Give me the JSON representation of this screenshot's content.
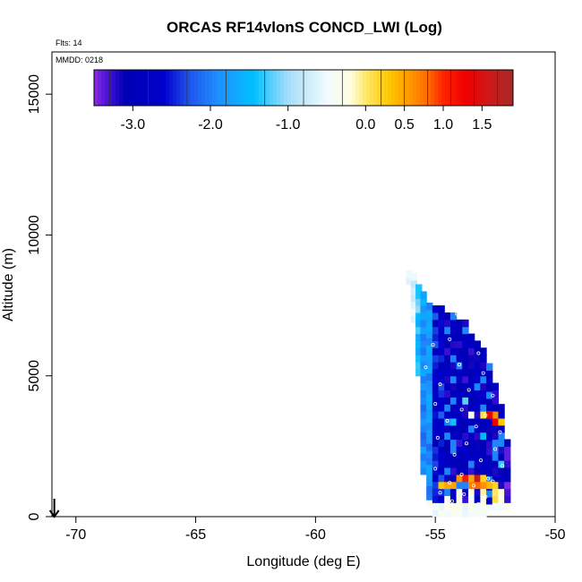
{
  "chart_data": {
    "type": "heatmap",
    "title": "ORCAS RF14vlonS CONCD_LWI (Log)",
    "flights_label": "Flts: 14",
    "date_label": "MMDD: 0218",
    "xlabel": "Longitude (deg E)",
    "ylabel": "Altitude (m)",
    "xlim": [
      -71,
      -50
    ],
    "ylim": [
      0,
      16500
    ],
    "x_ticks": [
      -70,
      -65,
      -60,
      -55,
      -50
    ],
    "x_tick_labels": [
      "-70",
      "-65",
      "-60",
      "-55",
      "-50"
    ],
    "y_ticks": [
      0,
      5000,
      10000,
      15000
    ],
    "y_tick_labels": [
      "0",
      "5000",
      "10000",
      "15000"
    ],
    "grid": false,
    "colorbar": {
      "min": -3.5,
      "max": 1.9,
      "tick_values": [
        -3.0,
        -2.0,
        -1.0,
        0.0,
        0.5,
        1.0,
        1.5
      ],
      "tick_labels": [
        "-3.0",
        "-2.0",
        "-1.0",
        "0.0",
        "0.5",
        "1.0",
        "1.5"
      ],
      "color_stops": [
        {
          "v": -3.5,
          "c": "#8a2be2"
        },
        {
          "v": -3.3,
          "c": "#3d10d6"
        },
        {
          "v": -3.1,
          "c": "#0000b4"
        },
        {
          "v": -2.6,
          "c": "#0000cd"
        },
        {
          "v": -2.3,
          "c": "#1e4fe8"
        },
        {
          "v": -1.9,
          "c": "#1e90ff"
        },
        {
          "v": -1.45,
          "c": "#00bfff"
        },
        {
          "v": -1.0,
          "c": "#a6dcf7"
        },
        {
          "v": -0.5,
          "c": "#f2fbff"
        },
        {
          "v": -0.2,
          "c": "#ffffe0"
        },
        {
          "v": 0.0,
          "c": "#ffe96b"
        },
        {
          "v": 0.3,
          "c": "#ffc800"
        },
        {
          "v": 0.5,
          "c": "#ffa500"
        },
        {
          "v": 0.8,
          "c": "#ff6a00"
        },
        {
          "v": 1.0,
          "c": "#ff2400"
        },
        {
          "v": 1.3,
          "c": "#ee0000"
        },
        {
          "v": 1.6,
          "c": "#cc1a1a"
        },
        {
          "v": 1.9,
          "c": "#a52a2a"
        }
      ]
    },
    "cell_size": {
      "lon": 0.25,
      "alt": 250
    },
    "columns": [
      {
        "lon": -56.1,
        "base": 8250,
        "top": 8600,
        "profile": "edge"
      },
      {
        "lon": -55.9,
        "base": 6900,
        "top": 8500,
        "profile": "edge"
      },
      {
        "lon": -55.7,
        "base": 5000,
        "top": 8250,
        "profile": "light"
      },
      {
        "lon": -55.5,
        "base": 1500,
        "top": 8000,
        "profile": "sky"
      },
      {
        "lon": -55.25,
        "base": 350,
        "top": 7600,
        "profile": "sky"
      },
      {
        "lon": -55.0,
        "base": 0,
        "top": 7400,
        "profile": "mid"
      },
      {
        "lon": -54.75,
        "base": 0,
        "top": 7300,
        "profile": "mid"
      },
      {
        "lon": -54.5,
        "base": 0,
        "top": 7200,
        "profile": "deep"
      },
      {
        "lon": -54.25,
        "base": 0,
        "top": 7100,
        "profile": "deep"
      },
      {
        "lon": -54.0,
        "base": 0,
        "top": 6900,
        "profile": "deep"
      },
      {
        "lon": -53.75,
        "base": 0,
        "top": 6800,
        "profile": "deep"
      },
      {
        "lon": -53.5,
        "base": 0,
        "top": 6500,
        "profile": "deep"
      },
      {
        "lon": -53.25,
        "base": 0,
        "top": 6150,
        "profile": "deep"
      },
      {
        "lon": -53.0,
        "base": 0,
        "top": 5800,
        "profile": "deep"
      },
      {
        "lon": -52.75,
        "base": 200,
        "top": 5300,
        "profile": "deep"
      },
      {
        "lon": -52.5,
        "base": 250,
        "top": 4600,
        "profile": "deep"
      },
      {
        "lon": -52.25,
        "base": 250,
        "top": 3900,
        "profile": "deep"
      },
      {
        "lon": -52.0,
        "base": 250,
        "top": 2700,
        "profile": "edge_purple"
      }
    ],
    "hot_spots": [
      {
        "lon": -54.0,
        "alt": 1150,
        "value": 0.6
      },
      {
        "lon": -53.75,
        "alt": 1150,
        "value": 0.4
      },
      {
        "lon": -53.5,
        "alt": 1150,
        "value": 0.5
      },
      {
        "lon": -53.25,
        "alt": 1150,
        "value": 0.3
      },
      {
        "lon": -53.0,
        "alt": 1150,
        "value": 0.2
      },
      {
        "lon": -53.75,
        "alt": 1150,
        "value": 1.1
      },
      {
        "lon": -53.5,
        "alt": 900,
        "value": 0.7
      },
      {
        "lon": -53.25,
        "alt": 900,
        "value": 0.8
      },
      {
        "lon": -53.0,
        "alt": 900,
        "value": 0.6
      },
      {
        "lon": -52.75,
        "alt": 900,
        "value": 0.4
      },
      {
        "lon": -52.5,
        "alt": 900,
        "value": 0.2
      },
      {
        "lon": -54.5,
        "alt": 900,
        "value": 0.5
      },
      {
        "lon": -54.25,
        "alt": 900,
        "value": 0.5
      },
      {
        "lon": -54.75,
        "alt": 900,
        "value": 0.3
      },
      {
        "lon": -52.75,
        "alt": 3400,
        "value": 1.4
      },
      {
        "lon": -53.0,
        "alt": 3400,
        "value": 0.1
      },
      {
        "lon": -52.5,
        "alt": 3400,
        "value": 0.6
      },
      {
        "lon": -52.5,
        "alt": 3150,
        "value": 1.3
      },
      {
        "lon": -53.5,
        "alt": 3400,
        "value": -0.4
      },
      {
        "lon": -52.25,
        "alt": 3150,
        "value": 0.3
      },
      {
        "lon": -53.25,
        "alt": 1150,
        "value": 1.6
      },
      {
        "lon": -54.0,
        "alt": 650,
        "value": -0.3
      },
      {
        "lon": -53.5,
        "alt": 650,
        "value": -0.2
      },
      {
        "lon": -53.0,
        "alt": 650,
        "value": -0.1
      },
      {
        "lon": -52.5,
        "alt": 650,
        "value": 0.0
      },
      {
        "lon": -52.25,
        "alt": 650,
        "value": -0.2
      },
      {
        "lon": -54.5,
        "alt": 400,
        "value": -0.4
      },
      {
        "lon": -54.0,
        "alt": 400,
        "value": -0.3
      },
      {
        "lon": -53.5,
        "alt": 400,
        "value": -0.5
      },
      {
        "lon": -53.0,
        "alt": 400,
        "value": -0.2
      },
      {
        "lon": -52.5,
        "alt": 400,
        "value": 0.1
      },
      {
        "lon": -52.25,
        "alt": 400,
        "value": -0.3
      },
      {
        "lon": -55.0,
        "alt": 150,
        "value": -0.4
      },
      {
        "lon": -54.5,
        "alt": 150,
        "value": -0.3
      },
      {
        "lon": -54.0,
        "alt": 150,
        "value": -0.3
      },
      {
        "lon": -53.5,
        "alt": 150,
        "value": -0.2
      },
      {
        "lon": -53.0,
        "alt": 150,
        "value": -0.3
      },
      {
        "lon": -52.5,
        "alt": 150,
        "value": -0.5
      },
      {
        "lon": -52.25,
        "alt": 1650,
        "value": -1.3
      },
      {
        "lon": -53.0,
        "alt": 2650,
        "value": -1.5
      },
      {
        "lon": -54.25,
        "alt": 3150,
        "value": -1.4
      },
      {
        "lon": -53.75,
        "alt": 3900,
        "value": -1.2
      }
    ],
    "observation_points": [
      {
        "lon": -54.1,
        "alt": 7200
      },
      {
        "lon": -53.9,
        "alt": 7200
      },
      {
        "lon": -53.8,
        "alt": 7200
      },
      {
        "lon": -53.3,
        "alt": 6700
      },
      {
        "lon": -52.7,
        "alt": 6500
      },
      {
        "lon": -54.4,
        "alt": 6300
      },
      {
        "lon": -55.1,
        "alt": 6100
      },
      {
        "lon": -53.2,
        "alt": 5800
      },
      {
        "lon": -52.7,
        "alt": 5600
      },
      {
        "lon": -54.0,
        "alt": 5400
      },
      {
        "lon": -55.4,
        "alt": 5300
      },
      {
        "lon": -53.0,
        "alt": 5100
      },
      {
        "lon": -52.4,
        "alt": 4900
      },
      {
        "lon": -54.8,
        "alt": 4700
      },
      {
        "lon": -53.6,
        "alt": 4500
      },
      {
        "lon": -52.6,
        "alt": 4300
      },
      {
        "lon": -55.0,
        "alt": 4000
      },
      {
        "lon": -53.9,
        "alt": 3800
      },
      {
        "lon": -52.9,
        "alt": 3600
      },
      {
        "lon": -54.5,
        "alt": 3400
      },
      {
        "lon": -53.3,
        "alt": 3200
      },
      {
        "lon": -52.3,
        "alt": 3000
      },
      {
        "lon": -54.9,
        "alt": 2800
      },
      {
        "lon": -53.7,
        "alt": 2600
      },
      {
        "lon": -52.5,
        "alt": 2400
      },
      {
        "lon": -54.2,
        "alt": 2200
      },
      {
        "lon": -53.1,
        "alt": 2000
      },
      {
        "lon": -52.2,
        "alt": 1800
      },
      {
        "lon": -55.0,
        "alt": 1700
      },
      {
        "lon": -53.9,
        "alt": 1500
      },
      {
        "lon": -52.8,
        "alt": 1350
      },
      {
        "lon": -54.4,
        "alt": 1200
      },
      {
        "lon": -53.4,
        "alt": 1100
      },
      {
        "lon": -54.8,
        "alt": 850
      },
      {
        "lon": -53.8,
        "alt": 800
      },
      {
        "lon": -52.9,
        "alt": 700
      },
      {
        "lon": -54.3,
        "alt": 550
      },
      {
        "lon": -53.2,
        "alt": 450
      },
      {
        "lon": -54.9,
        "alt": 300
      },
      {
        "lon": -52.6,
        "alt": 1250
      }
    ],
    "arrow_marker": {
      "lon": -70.9,
      "direction": "down"
    }
  }
}
